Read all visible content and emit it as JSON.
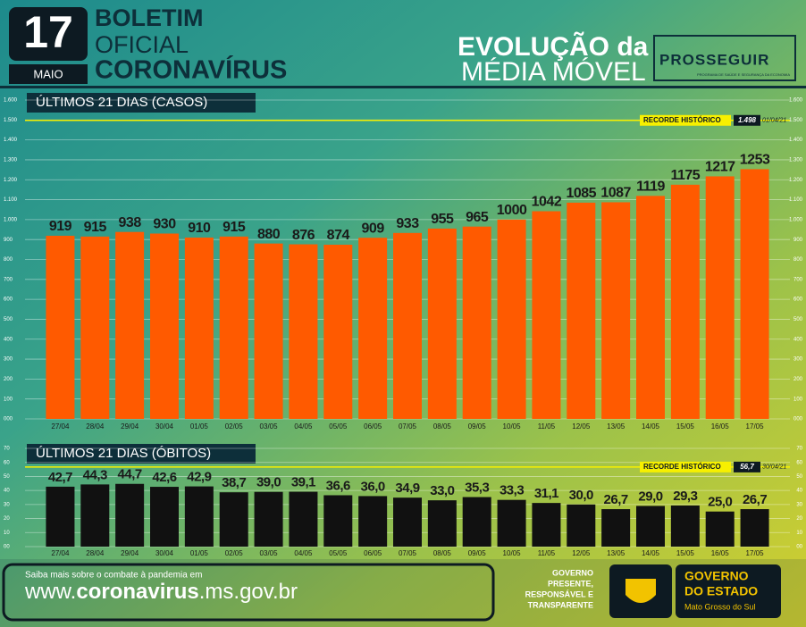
{
  "header": {
    "day": "17",
    "month": "MAIO",
    "line1": "BOLETIM",
    "line2": "OFICIAL",
    "line3": "CORONAVÍRUS",
    "heading1": "EVOLUÇÃO da",
    "heading2": "MÉDIA MÓVEL",
    "brand": "PROSSEGUIR",
    "brand_sub": "PROGRAMA DE SAÚDE E SEGURANÇA DA ECONOMIA"
  },
  "chart_data": [
    {
      "type": "bar",
      "title": "ÚLTIMOS 21 DIAS (CASOS)",
      "color": "#ff5a00",
      "categories": [
        "27/04",
        "28/04",
        "29/04",
        "30/04",
        "01/05",
        "02/05",
        "03/05",
        "04/05",
        "05/05",
        "06/05",
        "07/05",
        "08/05",
        "09/05",
        "10/05",
        "11/05",
        "12/05",
        "13/05",
        "14/05",
        "15/05",
        "16/05",
        "17/05"
      ],
      "values": [
        919,
        915,
        938,
        930,
        910,
        915,
        880,
        876,
        874,
        909,
        933,
        955,
        965,
        1000,
        1042,
        1085,
        1087,
        1119,
        1175,
        1217,
        1253
      ],
      "ylim": [
        0,
        1600
      ],
      "yticks": [
        {
          "value": 0,
          "label": "000"
        },
        100,
        200,
        300,
        400,
        500,
        600,
        700,
        800,
        900,
        {
          "value": 1000,
          "label": "1.000"
        },
        {
          "value": 1100,
          "label": "1.100"
        },
        {
          "value": 1200,
          "label": "1.200"
        },
        {
          "value": 1300,
          "label": "1.300"
        },
        {
          "value": 1400,
          "label": "1.400"
        },
        {
          "value": 1500,
          "label": "1.500"
        },
        {
          "value": 1600,
          "label": "1.600"
        }
      ],
      "record": {
        "label": "RECORDE HISTÓRICO",
        "value": 1498,
        "value_label": "1.498",
        "date": "01/04/21"
      }
    },
    {
      "type": "bar",
      "title": "ÚLTIMOS 21 DIAS (ÓBITOS)",
      "color": "#111111",
      "categories": [
        "27/04",
        "28/04",
        "29/04",
        "30/04",
        "01/05",
        "02/05",
        "03/05",
        "04/05",
        "05/05",
        "06/05",
        "07/05",
        "08/05",
        "09/05",
        "10/05",
        "11/05",
        "12/05",
        "13/05",
        "14/05",
        "15/05",
        "16/05",
        "17/05"
      ],
      "values": [
        42.7,
        44.3,
        44.7,
        42.6,
        42.9,
        38.7,
        39.0,
        39.1,
        36.6,
        36.0,
        34.9,
        33.0,
        35.3,
        33.3,
        31.1,
        30.0,
        26.7,
        29.0,
        29.3,
        25.0,
        26.7
      ],
      "value_labels": [
        "42,7",
        "44,3",
        "44,7",
        "42,6",
        "42,9",
        "38,7",
        "39,0",
        "39,1",
        "36,6",
        "36,0",
        "34,9",
        "33,0",
        "35,3",
        "33,3",
        "31,1",
        "30,0",
        "26,7",
        "29,0",
        "29,3",
        "25,0",
        "26,7"
      ],
      "ylim": [
        0,
        70
      ],
      "yticks": [
        {
          "value": 0,
          "label": "00"
        },
        10,
        20,
        30,
        40,
        50,
        60,
        70
      ],
      "record": {
        "label": "RECORDE HISTÓRICO",
        "value": 56.7,
        "value_label": "56,7",
        "date": "30/04/21"
      }
    }
  ],
  "footer": {
    "note": "Saiba mais sobre o combate à pandemia em",
    "url_pre": "www.",
    "url_bold": "coronavirus",
    "url_post": ".ms.gov.br",
    "motto1": "GOVERNO",
    "motto2": "PRESENTE,",
    "motto3": "RESPONSÁVEL E",
    "motto4": "TRANSPARENTE",
    "gov1": "GOVERNO",
    "gov2": "DO ESTADO",
    "state": "Mato Grosso do Sul"
  }
}
